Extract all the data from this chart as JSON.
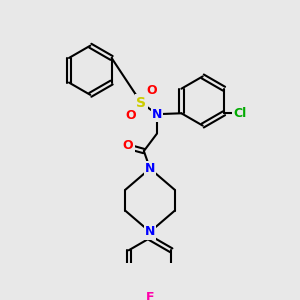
{
  "bg_color": "#e8e8e8",
  "bond_color": "#000000",
  "bond_lw": 1.5,
  "atom_colors": {
    "N": "#0000ff",
    "O": "#ff0000",
    "S": "#cccc00",
    "Cl": "#00aa00",
    "F": "#ff00aa",
    "C": "#000000"
  },
  "font_size": 9
}
